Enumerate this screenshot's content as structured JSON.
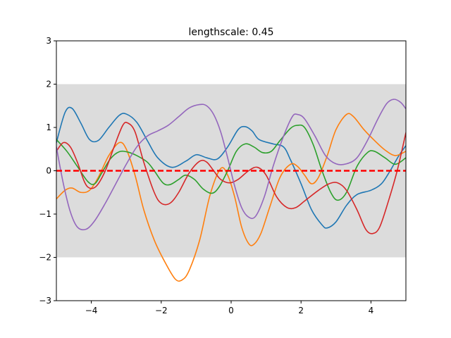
{
  "chart_data": {
    "type": "line",
    "title": "lengthscale: 0.45",
    "xlabel": "",
    "ylabel": "",
    "xlim": [
      -5,
      5
    ],
    "ylim": [
      -3,
      3
    ],
    "xticks": [
      -4,
      -2,
      0,
      2,
      4
    ],
    "xtick_labels": [
      "−4",
      "−2",
      "0",
      "2",
      "4"
    ],
    "yticks": [
      -3,
      -2,
      -1,
      0,
      1,
      2,
      3
    ],
    "ytick_labels": [
      "−3",
      "−2",
      "−1",
      "0",
      "1",
      "2",
      "3"
    ],
    "grid": false,
    "legend": "none",
    "band": {
      "lower": -2,
      "upper": 2,
      "color": "#dcdcdc"
    },
    "mean_line": {
      "y": 0,
      "color": "#ff0000",
      "style": "dashed"
    },
    "series": [
      {
        "color": "#1f77b4",
        "points": [
          [
            -5,
            0.65
          ],
          [
            -4.75,
            1.35
          ],
          [
            -4.55,
            1.44
          ],
          [
            -4.3,
            1.1
          ],
          [
            -4.05,
            0.72
          ],
          [
            -3.8,
            0.7
          ],
          [
            -3.5,
            1.0
          ],
          [
            -3.2,
            1.28
          ],
          [
            -3.0,
            1.31
          ],
          [
            -2.7,
            1.12
          ],
          [
            -2.4,
            0.7
          ],
          [
            -2.1,
            0.3
          ],
          [
            -1.7,
            0.08
          ],
          [
            -1.3,
            0.22
          ],
          [
            -1.0,
            0.37
          ],
          [
            -0.7,
            0.3
          ],
          [
            -0.4,
            0.27
          ],
          [
            -0.1,
            0.55
          ],
          [
            0.2,
            0.95
          ],
          [
            0.4,
            1.02
          ],
          [
            0.6,
            0.92
          ],
          [
            0.8,
            0.72
          ],
          [
            1.2,
            0.62
          ],
          [
            1.5,
            0.55
          ],
          [
            1.7,
            0.25
          ],
          [
            2.0,
            -0.3
          ],
          [
            2.3,
            -0.9
          ],
          [
            2.6,
            -1.25
          ],
          [
            2.75,
            -1.32
          ],
          [
            3.0,
            -1.18
          ],
          [
            3.3,
            -0.8
          ],
          [
            3.6,
            -0.55
          ],
          [
            4.0,
            -0.45
          ],
          [
            4.3,
            -0.3
          ],
          [
            4.55,
            0.0
          ],
          [
            4.8,
            0.35
          ],
          [
            5.0,
            0.58
          ]
        ]
      },
      {
        "color": "#ff7f0e",
        "points": [
          [
            -5,
            -0.65
          ],
          [
            -4.75,
            -0.45
          ],
          [
            -4.55,
            -0.4
          ],
          [
            -4.3,
            -0.5
          ],
          [
            -4.05,
            -0.45
          ],
          [
            -3.8,
            -0.15
          ],
          [
            -3.5,
            0.35
          ],
          [
            -3.2,
            0.65
          ],
          [
            -3.0,
            0.5
          ],
          [
            -2.75,
            -0.1
          ],
          [
            -2.5,
            -0.9
          ],
          [
            -2.2,
            -1.6
          ],
          [
            -1.9,
            -2.1
          ],
          [
            -1.6,
            -2.5
          ],
          [
            -1.4,
            -2.52
          ],
          [
            -1.2,
            -2.3
          ],
          [
            -0.9,
            -1.6
          ],
          [
            -0.6,
            -0.55
          ],
          [
            -0.3,
            0.05
          ],
          [
            -0.1,
            -0.1
          ],
          [
            0.1,
            -0.6
          ],
          [
            0.3,
            -1.3
          ],
          [
            0.5,
            -1.68
          ],
          [
            0.65,
            -1.7
          ],
          [
            0.85,
            -1.45
          ],
          [
            1.1,
            -0.85
          ],
          [
            1.4,
            -0.15
          ],
          [
            1.7,
            0.15
          ],
          [
            1.9,
            0.1
          ],
          [
            2.1,
            -0.1
          ],
          [
            2.3,
            -0.3
          ],
          [
            2.5,
            -0.15
          ],
          [
            2.75,
            0.35
          ],
          [
            3.0,
            0.95
          ],
          [
            3.3,
            1.3
          ],
          [
            3.5,
            1.25
          ],
          [
            3.8,
            0.95
          ],
          [
            4.1,
            0.7
          ],
          [
            4.4,
            0.48
          ],
          [
            4.7,
            0.35
          ],
          [
            5.0,
            0.45
          ]
        ]
      },
      {
        "color": "#2ca02c",
        "points": [
          [
            -5,
            0.72
          ],
          [
            -4.7,
            0.45
          ],
          [
            -4.4,
            0.1
          ],
          [
            -4.1,
            -0.25
          ],
          [
            -3.9,
            -0.3
          ],
          [
            -3.7,
            -0.05
          ],
          [
            -3.45,
            0.28
          ],
          [
            -3.2,
            0.44
          ],
          [
            -2.95,
            0.43
          ],
          [
            -2.7,
            0.35
          ],
          [
            -2.4,
            0.2
          ],
          [
            -2.2,
            0.0
          ],
          [
            -1.95,
            -0.28
          ],
          [
            -1.75,
            -0.32
          ],
          [
            -1.5,
            -0.2
          ],
          [
            -1.3,
            -0.1
          ],
          [
            -1.05,
            -0.2
          ],
          [
            -0.8,
            -0.42
          ],
          [
            -0.55,
            -0.52
          ],
          [
            -0.35,
            -0.38
          ],
          [
            -0.1,
            0.0
          ],
          [
            0.15,
            0.45
          ],
          [
            0.4,
            0.62
          ],
          [
            0.65,
            0.55
          ],
          [
            0.9,
            0.42
          ],
          [
            1.15,
            0.45
          ],
          [
            1.4,
            0.7
          ],
          [
            1.7,
            0.98
          ],
          [
            1.9,
            1.05
          ],
          [
            2.1,
            1.0
          ],
          [
            2.35,
            0.6
          ],
          [
            2.6,
            0.0
          ],
          [
            2.85,
            -0.5
          ],
          [
            3.05,
            -0.68
          ],
          [
            3.3,
            -0.5
          ],
          [
            3.6,
            0.1
          ],
          [
            3.9,
            0.42
          ],
          [
            4.1,
            0.45
          ],
          [
            4.4,
            0.3
          ],
          [
            4.7,
            0.15
          ],
          [
            5.0,
            0.3
          ]
        ]
      },
      {
        "color": "#d62728",
        "points": [
          [
            -5,
            0.45
          ],
          [
            -4.8,
            0.65
          ],
          [
            -4.6,
            0.55
          ],
          [
            -4.4,
            0.2
          ],
          [
            -4.2,
            -0.25
          ],
          [
            -4.05,
            -0.4
          ],
          [
            -3.85,
            -0.35
          ],
          [
            -3.6,
            0.0
          ],
          [
            -3.35,
            0.55
          ],
          [
            -3.1,
            1.05
          ],
          [
            -2.95,
            1.1
          ],
          [
            -2.75,
            0.9
          ],
          [
            -2.5,
            0.2
          ],
          [
            -2.2,
            -0.5
          ],
          [
            -2.0,
            -0.75
          ],
          [
            -1.75,
            -0.75
          ],
          [
            -1.5,
            -0.5
          ],
          [
            -1.2,
            -0.05
          ],
          [
            -0.9,
            0.22
          ],
          [
            -0.7,
            0.2
          ],
          [
            -0.5,
            0.0
          ],
          [
            -0.3,
            -0.2
          ],
          [
            -0.05,
            -0.28
          ],
          [
            0.2,
            -0.2
          ],
          [
            0.5,
            0.0
          ],
          [
            0.75,
            0.08
          ],
          [
            1.0,
            -0.1
          ],
          [
            1.3,
            -0.6
          ],
          [
            1.6,
            -0.85
          ],
          [
            1.85,
            -0.85
          ],
          [
            2.1,
            -0.7
          ],
          [
            2.5,
            -0.45
          ],
          [
            2.8,
            -0.3
          ],
          [
            3.05,
            -0.28
          ],
          [
            3.3,
            -0.45
          ],
          [
            3.6,
            -0.9
          ],
          [
            3.85,
            -1.35
          ],
          [
            4.05,
            -1.45
          ],
          [
            4.25,
            -1.3
          ],
          [
            4.5,
            -0.7
          ],
          [
            4.75,
            0.0
          ],
          [
            5.0,
            0.88
          ]
        ]
      },
      {
        "color": "#9467bd",
        "points": [
          [
            -5,
            0.55
          ],
          [
            -4.8,
            -0.3
          ],
          [
            -4.6,
            -0.95
          ],
          [
            -4.4,
            -1.3
          ],
          [
            -4.15,
            -1.35
          ],
          [
            -3.9,
            -1.15
          ],
          [
            -3.6,
            -0.75
          ],
          [
            -3.3,
            -0.3
          ],
          [
            -3.0,
            0.15
          ],
          [
            -2.7,
            0.55
          ],
          [
            -2.4,
            0.8
          ],
          [
            -2.1,
            0.92
          ],
          [
            -1.8,
            1.05
          ],
          [
            -1.5,
            1.25
          ],
          [
            -1.2,
            1.45
          ],
          [
            -0.9,
            1.53
          ],
          [
            -0.7,
            1.5
          ],
          [
            -0.5,
            1.3
          ],
          [
            -0.3,
            0.9
          ],
          [
            -0.1,
            0.3
          ],
          [
            0.1,
            -0.35
          ],
          [
            0.3,
            -0.85
          ],
          [
            0.5,
            -1.07
          ],
          [
            0.7,
            -1.05
          ],
          [
            0.95,
            -0.6
          ],
          [
            1.2,
            0.1
          ],
          [
            1.5,
            0.8
          ],
          [
            1.75,
            1.25
          ],
          [
            1.9,
            1.3
          ],
          [
            2.1,
            1.2
          ],
          [
            2.4,
            0.8
          ],
          [
            2.7,
            0.35
          ],
          [
            3.0,
            0.16
          ],
          [
            3.3,
            0.16
          ],
          [
            3.6,
            0.3
          ],
          [
            3.9,
            0.7
          ],
          [
            4.2,
            1.2
          ],
          [
            4.45,
            1.55
          ],
          [
            4.65,
            1.65
          ],
          [
            4.85,
            1.58
          ],
          [
            5.0,
            1.43
          ]
        ]
      }
    ]
  }
}
